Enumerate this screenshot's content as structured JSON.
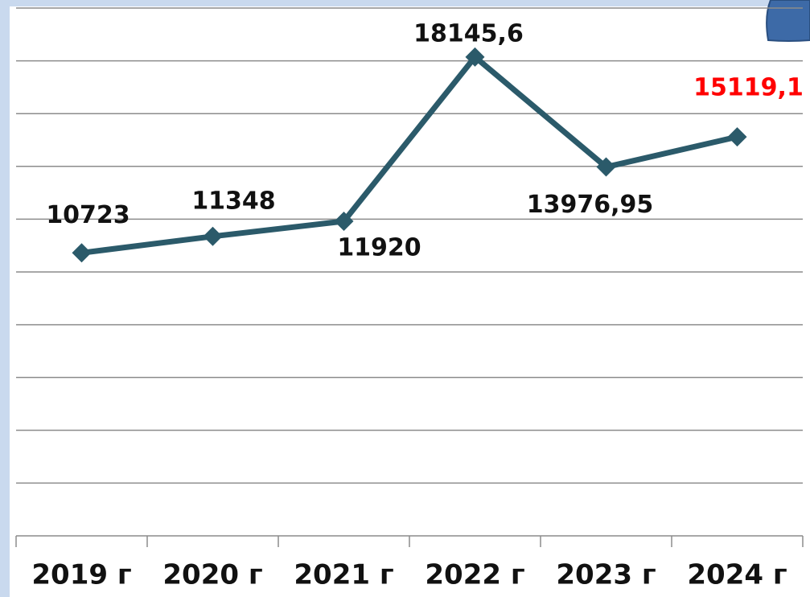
{
  "chart_data": {
    "type": "line",
    "categories": [
      "2019 г",
      "2020 г",
      "2021 г",
      "2022 г",
      "2023 г",
      "2024 г"
    ],
    "series": [
      {
        "color": "#2b5a6a",
        "values": [
          10723,
          11348,
          11920,
          18145.6,
          13976.95,
          15119.1
        ],
        "value_labels": [
          "10723",
          "11348",
          "11920",
          "18145,6",
          "13976,95",
          "15119,1"
        ],
        "value_label_colors": [
          "#111111",
          "#111111",
          "#111111",
          "#111111",
          "#111111",
          "#ff0000"
        ]
      }
    ],
    "ylim": [
      0,
      20000
    ],
    "yticks": [
      0,
      2000,
      4000,
      6000,
      8000,
      10000,
      12000,
      14000,
      16000,
      18000,
      20000
    ],
    "grid": true
  }
}
